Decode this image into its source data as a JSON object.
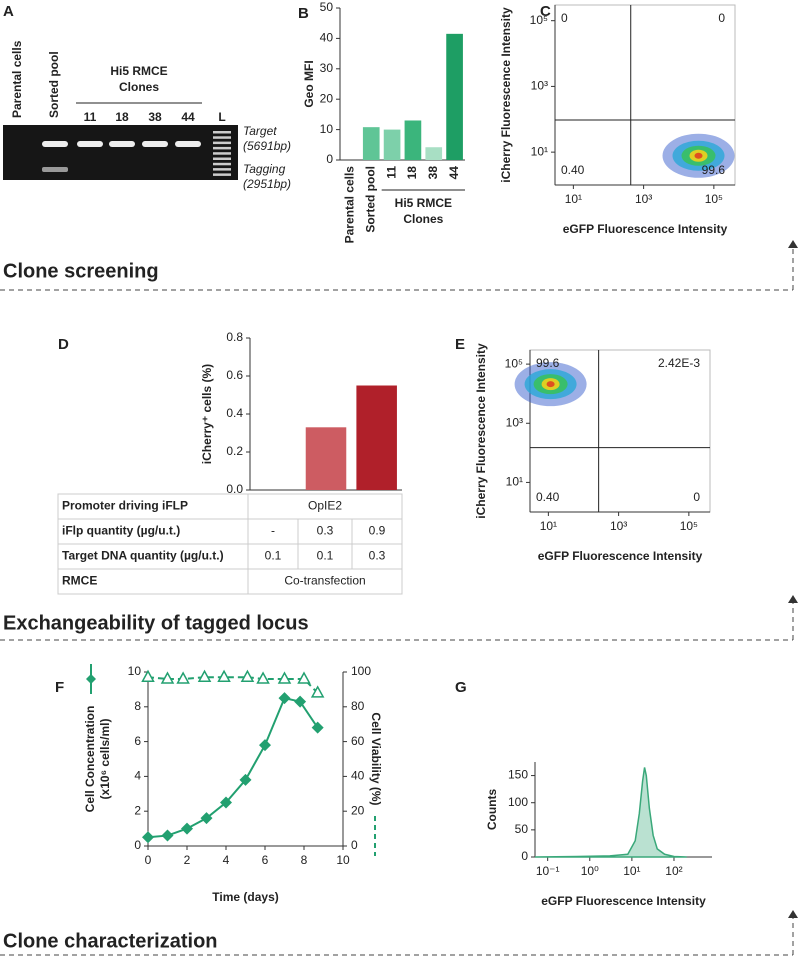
{
  "sections": [
    "Clone screening",
    "Exchangeability of tagged locus",
    "Clone characterization"
  ],
  "gel": {
    "panel": "A",
    "lanes": [
      "Parental cells",
      "Sorted pool",
      "11",
      "18",
      "38",
      "44",
      "L"
    ],
    "group_label": [
      "Hi5 RMCE",
      "Clones"
    ],
    "bands": [
      {
        "name": "Target",
        "size": "(5691bp)"
      },
      {
        "name": "Tagging",
        "size": "(2951bp)"
      }
    ]
  },
  "table": {
    "rows": [
      [
        "Promoter driving iFLP",
        "OpIE2"
      ],
      [
        "iFlp quantity (µg/u.t.)",
        "-",
        "0.3",
        "0.9"
      ],
      [
        "Target DNA quantity (µg/u.t.)",
        "0.1",
        "0.1",
        "0.3"
      ],
      [
        "RMCE",
        "Co-transfection"
      ]
    ]
  },
  "chart_data": [
    {
      "type": "bar",
      "panel": "B",
      "ylabel": [
        "Geo MFI"
      ],
      "categories": [
        "Parental cells",
        "Sorted pool",
        "11",
        "18",
        "38",
        "44"
      ],
      "values": [
        0,
        10.8,
        10,
        13,
        4.2,
        41.5
      ],
      "colors": [
        "#5fc596",
        "#5fc596",
        "#7dd0aa",
        "#3bb57c",
        "#a8dfc4",
        "#1e9e64"
      ],
      "group_label": [
        "Hi5 RMCE",
        "Clones"
      ],
      "ylim": [
        0,
        50
      ],
      "yticks": [
        0,
        10,
        20,
        30,
        40,
        50
      ]
    },
    {
      "type": "flow",
      "panel": "C",
      "xlabel": "eGFP Fluorescence Intensity",
      "ylabel": [
        "iCherry Fluorescence Intensity"
      ],
      "xscale": "log",
      "yscale": "log",
      "xlim": [
        3,
        400000
      ],
      "ylim": [
        1,
        300000
      ],
      "xticks": [
        {
          "value": 10,
          "label": "10¹"
        },
        {
          "value": 1000,
          "label": "10³"
        },
        {
          "value": 100000,
          "label": "10⁵"
        }
      ],
      "yticks": [
        {
          "value": 10,
          "label": "10¹"
        },
        {
          "value": 1000,
          "label": "10³"
        },
        {
          "value": 100000,
          "label": "10⁵"
        }
      ],
      "gates": {
        "x": 430,
        "y": 95
      },
      "quadrants": {
        "upper_left": "0",
        "upper_right": "0",
        "lower_left": "0.40",
        "lower_right": "99.6"
      }
    },
    {
      "type": "bar",
      "panel": "D",
      "ylabel": [
        "iCherry⁺ cells (%)"
      ],
      "categories": [
        null,
        null,
        null
      ],
      "values": [
        0,
        0.33,
        0.55
      ],
      "colors": [
        "#d9a0a0",
        "#cd5c62",
        "#b0202a"
      ],
      "ylim": [
        0,
        0.8
      ],
      "yticks": [
        {
          "value": 0,
          "label": "0.0"
        },
        0.2,
        0.4,
        0.6,
        0.8
      ]
    },
    {
      "type": "flow",
      "panel": "E",
      "xlabel": "eGFP Fluorescence Intensity",
      "ylabel": [
        "iCherry Fluorescence Intensity"
      ],
      "xscale": "log",
      "yscale": "log",
      "xlim": [
        3,
        400000
      ],
      "ylim": [
        1,
        300000
      ],
      "xticks": [
        {
          "value": 10,
          "label": "10¹"
        },
        {
          "value": 1000,
          "label": "10³"
        },
        {
          "value": 100000,
          "label": "10⁵"
        }
      ],
      "yticks": [
        {
          "value": 10,
          "label": "10¹"
        },
        {
          "value": 1000,
          "label": "10³"
        },
        {
          "value": 100000,
          "label": "10⁵"
        }
      ],
      "gates": {
        "x": 270,
        "y": 150
      },
      "quadrants": {
        "upper_left": "99.6",
        "upper_right": "2.42E-3",
        "lower_left": "0.40",
        "lower_right": "0"
      }
    },
    {
      "type": "line",
      "panel": "F",
      "xlabel": "Time (days)",
      "ylabel": [
        "Cell Concentration",
        "(x10⁶ cells/ml)"
      ],
      "y2label": "Cell Viability (%)",
      "xlim": [
        0,
        10
      ],
      "xticks": [
        0,
        2,
        4,
        6,
        8,
        10
      ],
      "ylim": [
        0,
        10
      ],
      "yticks": [
        0,
        2,
        4,
        6,
        8,
        10
      ],
      "y2lim": [
        0,
        100
      ],
      "y2ticks": [
        0,
        20,
        40,
        60,
        80,
        100
      ],
      "series": [
        {
          "name": "Cell Concentration",
          "color": "#22a070",
          "marker": "diamond",
          "x": [
            0,
            1,
            2,
            3,
            4,
            5,
            6,
            7,
            7.8,
            8.7
          ],
          "values": [
            0.5,
            0.6,
            1.0,
            1.6,
            2.5,
            3.8,
            5.8,
            8.5,
            8.3,
            6.8
          ]
        },
        {
          "name": "Cell Viability",
          "color": "#22a070",
          "marker": "triangle",
          "axis": "y2",
          "x": [
            0,
            1,
            1.8,
            2.9,
            3.9,
            5.1,
            5.9,
            7,
            8,
            8.7
          ],
          "values": [
            97,
            96,
            96,
            97,
            97,
            97,
            96,
            96,
            96,
            88
          ]
        }
      ]
    },
    {
      "type": "area",
      "panel": "G",
      "xlabel": "eGFP Fluorescence Intensity",
      "ylabel": [
        "Counts"
      ],
      "xscale": "log",
      "color": "#3aa87a",
      "xlim": [
        0.05,
        800
      ],
      "xticks": [
        {
          "value": 0.1,
          "label": "10⁻¹"
        },
        {
          "value": 1,
          "label": "10⁰"
        },
        {
          "value": 10,
          "label": "10¹"
        },
        {
          "value": 100,
          "label": "10²"
        }
      ],
      "ylim": [
        0,
        175
      ],
      "yticks": [
        0,
        50,
        100,
        150
      ],
      "x": [
        0.05,
        0.5,
        3,
        8,
        12,
        15,
        18,
        20,
        22,
        26,
        32,
        40,
        60,
        100,
        200
      ],
      "values": [
        0,
        1,
        2,
        5,
        30,
        80,
        140,
        165,
        150,
        90,
        40,
        15,
        5,
        1,
        0
      ]
    }
  ]
}
